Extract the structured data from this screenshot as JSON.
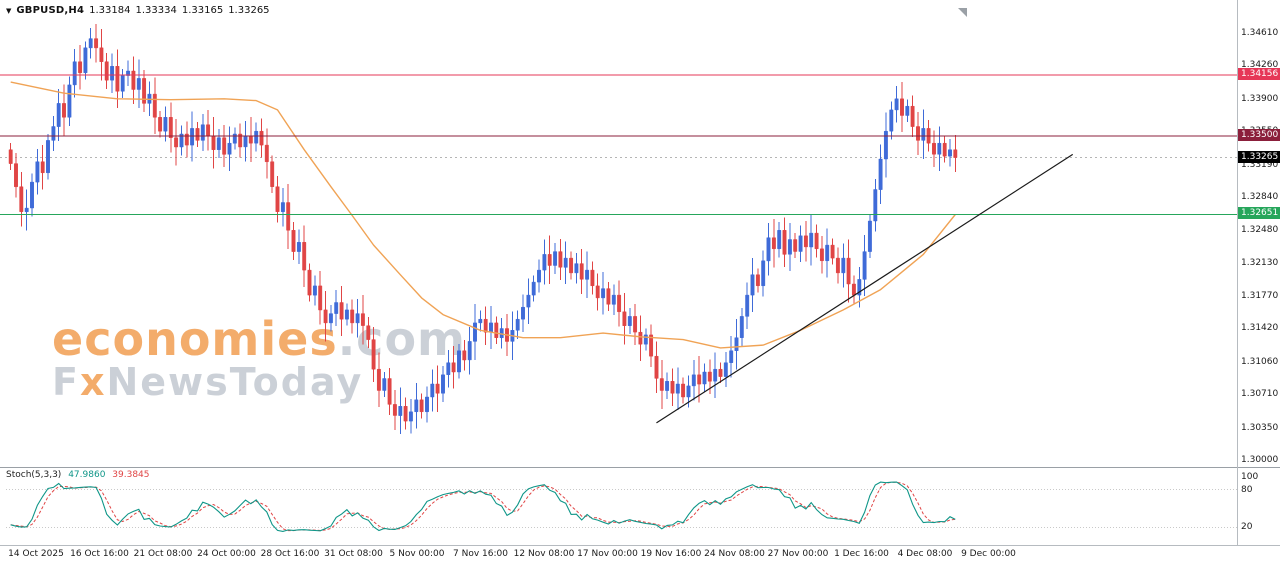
{
  "header": {
    "symbol": "GBPUSD,H4",
    "open": "1.33184",
    "high": "1.33334",
    "low": "1.33165",
    "close": "1.33265"
  },
  "watermark": {
    "brand": "economies",
    "suffix": ".com",
    "line2_prefix": "F",
    "line2_accent": "x",
    "line2_rest": "NewsToday"
  },
  "chart_data": {
    "type": "candlestick",
    "symbol": "GBPUSD",
    "timeframe": "H4",
    "y_range": [
      1.3,
      1.3461
    ],
    "grid": false,
    "y_ticks": [
      "1.34610",
      "1.34260",
      "1.33900",
      "1.33550",
      "1.33190",
      "1.32840",
      "1.32480",
      "1.32130",
      "1.31770",
      "1.31420",
      "1.31060",
      "1.30710",
      "1.30350",
      "1.30000"
    ],
    "x_labels": [
      "14 Oct 2025",
      "16 Oct 16:00",
      "21 Oct 08:00",
      "24 Oct 00:00",
      "28 Oct 16:00",
      "31 Oct 08:00",
      "5 Nov 00:00",
      "7 Nov 16:00",
      "12 Nov 08:00",
      "17 Nov 00:00",
      "19 Nov 16:00",
      "24 Nov 08:00",
      "27 Nov 00:00",
      "1 Dec 16:00",
      "4 Dec 08:00",
      "9 Dec 00:00"
    ],
    "candles": {
      "up_color": "#3f6bd8",
      "down_color": "#e04545",
      "first_open": 1.3335,
      "closes": [
        1.332,
        1.3295,
        1.3268,
        1.3272,
        1.33,
        1.3322,
        1.331,
        1.3345,
        1.336,
        1.3385,
        1.337,
        1.3405,
        1.343,
        1.3418,
        1.3445,
        1.3455,
        1.3445,
        1.343,
        1.341,
        1.3425,
        1.3398,
        1.3415,
        1.342,
        1.34,
        1.3412,
        1.3385,
        1.3395,
        1.337,
        1.3355,
        1.337,
        1.3348,
        1.3338,
        1.3352,
        1.334,
        1.3358,
        1.3345,
        1.3362,
        1.335,
        1.3335,
        1.3348,
        1.333,
        1.3342,
        1.3352,
        1.3338,
        1.335,
        1.3342,
        1.3355,
        1.334,
        1.3322,
        1.3295,
        1.3268,
        1.3278,
        1.3248,
        1.3225,
        1.3235,
        1.3205,
        1.3178,
        1.3188,
        1.3162,
        1.3148,
        1.3158,
        1.317,
        1.3152,
        1.3162,
        1.3148,
        1.3158,
        1.3145,
        1.313,
        1.3098,
        1.3075,
        1.3088,
        1.306,
        1.3048,
        1.3058,
        1.3042,
        1.3052,
        1.3065,
        1.3052,
        1.3068,
        1.3082,
        1.3072,
        1.3092,
        1.3105,
        1.3095,
        1.3118,
        1.3108,
        1.3128,
        1.3148,
        1.3152,
        1.3138,
        1.3148,
        1.3132,
        1.3142,
        1.3128,
        1.314,
        1.3152,
        1.3165,
        1.3178,
        1.3192,
        1.3205,
        1.3222,
        1.321,
        1.3225,
        1.3208,
        1.3218,
        1.3202,
        1.3212,
        1.3195,
        1.3205,
        1.3188,
        1.3175,
        1.3185,
        1.3168,
        1.3178,
        1.316,
        1.3145,
        1.3155,
        1.3138,
        1.3125,
        1.3135,
        1.3112,
        1.3088,
        1.3075,
        1.3085,
        1.3072,
        1.3082,
        1.3068,
        1.308,
        1.3092,
        1.3082,
        1.3095,
        1.3085,
        1.3098,
        1.309,
        1.3105,
        1.3118,
        1.3132,
        1.3155,
        1.3178,
        1.32,
        1.3188,
        1.3215,
        1.324,
        1.3228,
        1.3248,
        1.3222,
        1.3238,
        1.3225,
        1.3242,
        1.323,
        1.3245,
        1.3228,
        1.3215,
        1.3232,
        1.3218,
        1.3202,
        1.3218,
        1.319,
        1.3178,
        1.3195,
        1.3225,
        1.3258,
        1.3292,
        1.3325,
        1.3355,
        1.3378,
        1.339,
        1.3372,
        1.3382,
        1.336,
        1.3345,
        1.3358,
        1.3342,
        1.333,
        1.3342,
        1.3328,
        1.3335,
        1.33265
      ]
    },
    "ma": {
      "color": "#f0a355",
      "points": [
        [
          0,
          1.3408
        ],
        [
          10,
          1.3396
        ],
        [
          20,
          1.339
        ],
        [
          30,
          1.3389
        ],
        [
          40,
          1.339
        ],
        [
          46,
          1.3388
        ],
        [
          50,
          1.3378
        ],
        [
          55,
          1.3335
        ],
        [
          60,
          1.3295
        ],
        [
          64,
          1.3264
        ],
        [
          68,
          1.3232
        ],
        [
          73,
          1.32
        ],
        [
          77,
          1.3175
        ],
        [
          81,
          1.3157
        ],
        [
          88,
          1.314
        ],
        [
          96,
          1.3132
        ],
        [
          103,
          1.3132
        ],
        [
          111,
          1.3137
        ],
        [
          118,
          1.3133
        ],
        [
          126,
          1.313
        ],
        [
          133,
          1.3121
        ],
        [
          141,
          1.3124
        ],
        [
          148,
          1.314
        ],
        [
          156,
          1.3162
        ],
        [
          163,
          1.3184
        ],
        [
          171,
          1.3222
        ],
        [
          177,
          1.3265
        ]
      ]
    },
    "trendline": {
      "from_index": 121,
      "from_price": 1.304,
      "to_index": 199,
      "to_price": 1.333,
      "color": "#1a1a1a"
    },
    "horizontal_lines": [
      {
        "price": 1.34156,
        "color": "#e63757"
      },
      {
        "price": 1.335,
        "color": "#8b1f3b"
      },
      {
        "price": 1.32651,
        "color": "#26a65b"
      }
    ],
    "current_price": {
      "value": 1.33265,
      "line_color": "#b5b5b5",
      "tag_bg": "#000000"
    },
    "price_tags": [
      {
        "text": "1.34156",
        "bg": "#e63757"
      },
      {
        "text": "1.33500",
        "bg": "#8b1f3b"
      },
      {
        "text": "1.33265",
        "bg": "#000000"
      },
      {
        "text": "1.32651",
        "bg": "#26a65b"
      }
    ],
    "stoch": {
      "name": "Stoch(5,3,3)",
      "k": "47.9860",
      "d": "39.3845",
      "k_color": "#0f9688",
      "d_color": "#e04545",
      "levels": [
        100,
        80,
        20
      ],
      "level_labels": [
        "100",
        "80",
        "20"
      ]
    }
  }
}
